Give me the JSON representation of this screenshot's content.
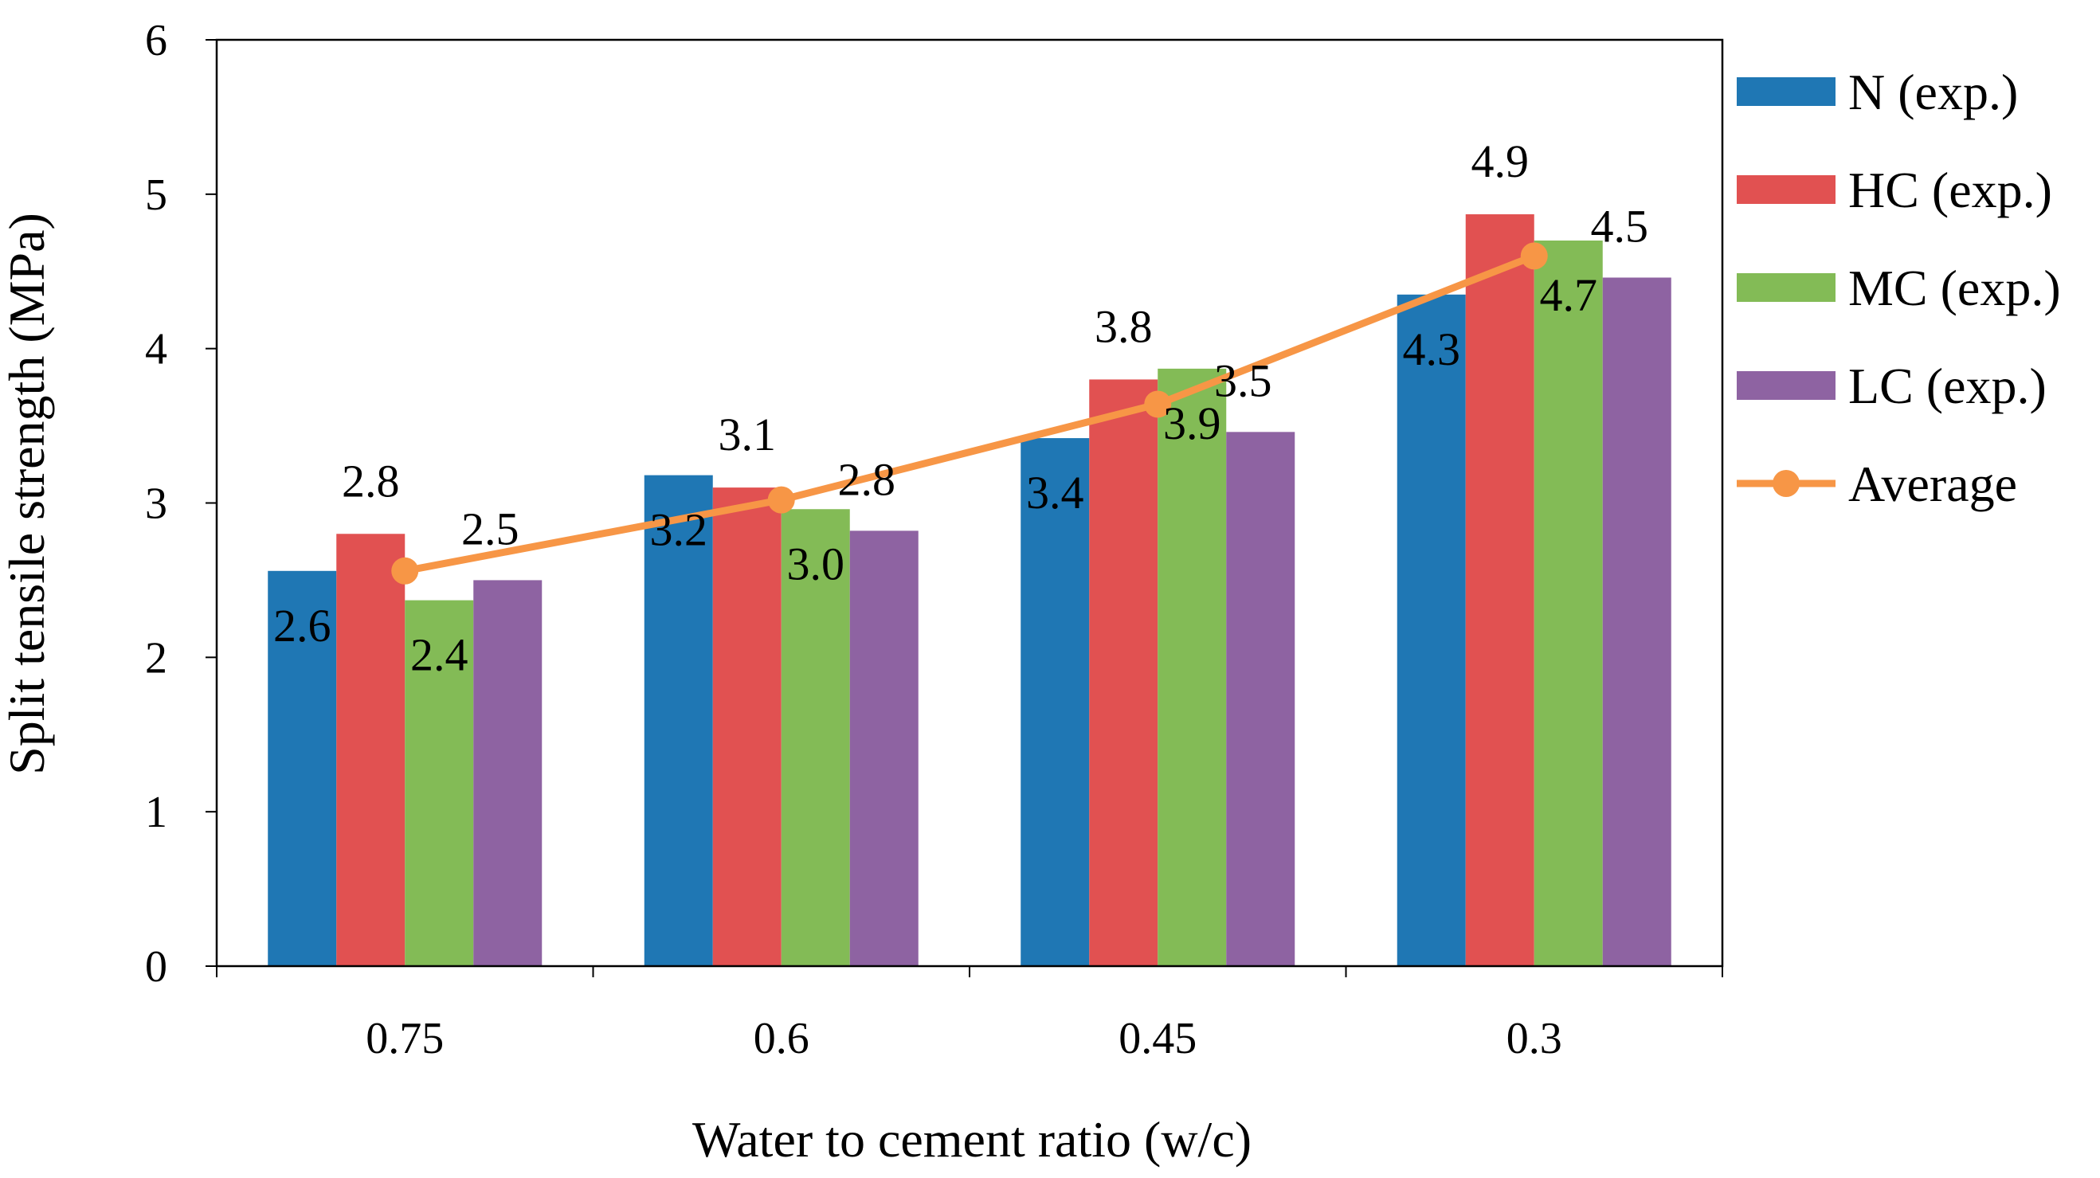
{
  "chart_data": {
    "type": "bar",
    "title": "",
    "xlabel": "Water to cement ratio (w/c)",
    "ylabel": "Split tensile strength (MPa)",
    "ylim": [
      0,
      6
    ],
    "yticks": [
      "0",
      "1",
      "2",
      "3",
      "4",
      "5",
      "6"
    ],
    "categories": [
      "0.75",
      "0.6",
      "0.45",
      "0.3"
    ],
    "grid": false,
    "legend_position": "right",
    "series": [
      {
        "name": "N (exp.)",
        "type": "bar",
        "color": "#1f77b4",
        "values": [
          2.56,
          3.18,
          3.42,
          4.35
        ],
        "labels": [
          "2.6",
          "3.2",
          "3.4",
          "4.3"
        ]
      },
      {
        "name": "HC (exp.)",
        "type": "bar",
        "color": "#e15151",
        "values": [
          2.8,
          3.1,
          3.8,
          4.87
        ],
        "labels": [
          "2.8",
          "3.1",
          "3.8",
          "4.9"
        ]
      },
      {
        "name": "MC (exp.)",
        "type": "bar",
        "color": "#83bb56",
        "values": [
          2.37,
          2.96,
          3.87,
          4.7
        ],
        "labels": [
          "2.4",
          "3.0",
          "3.9",
          "4.7"
        ]
      },
      {
        "name": "LC (exp.)",
        "type": "bar",
        "color": "#8e63a2",
        "values": [
          2.5,
          2.82,
          3.46,
          4.46
        ],
        "labels": [
          "2.5",
          "2.8",
          "3.5",
          "4.5"
        ]
      },
      {
        "name": "Average",
        "type": "line",
        "color": "#f79646",
        "values": [
          2.56,
          3.02,
          3.64,
          4.6
        ]
      }
    ]
  }
}
